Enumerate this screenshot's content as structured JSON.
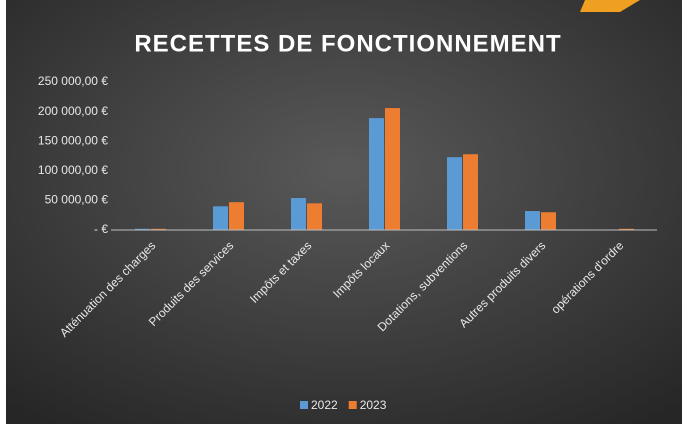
{
  "chart_data": {
    "type": "bar",
    "title": "RECETTES  DE  FONCTIONNEMENT",
    "categories": [
      "Atténuation des charges",
      "Produits des services",
      "Impôts et taxes",
      "Impôts locaux",
      "Dotations, subventions",
      "Autres produits divers",
      "opérations d'ordre"
    ],
    "series": [
      {
        "name": "2022",
        "color": "#5b9bd5",
        "values": [
          2000,
          40000,
          54000,
          189000,
          123000,
          32000,
          0
        ]
      },
      {
        "name": "2023",
        "color": "#ed7d31",
        "values": [
          2000,
          47000,
          45000,
          206000,
          128000,
          30000,
          2000
        ]
      }
    ],
    "ylim": [
      0,
      250000
    ],
    "yticks": [
      {
        "value": 0,
        "label": "-   €"
      },
      {
        "value": 50000,
        "label": "50 000,00 €"
      },
      {
        "value": 100000,
        "label": "100 000,00 €"
      },
      {
        "value": 150000,
        "label": "150 000,00 €"
      },
      {
        "value": 200000,
        "label": "200 000,00 €"
      },
      {
        "value": 250000,
        "label": "250 000,00 €"
      }
    ],
    "grid": false,
    "legend": "bottom"
  }
}
